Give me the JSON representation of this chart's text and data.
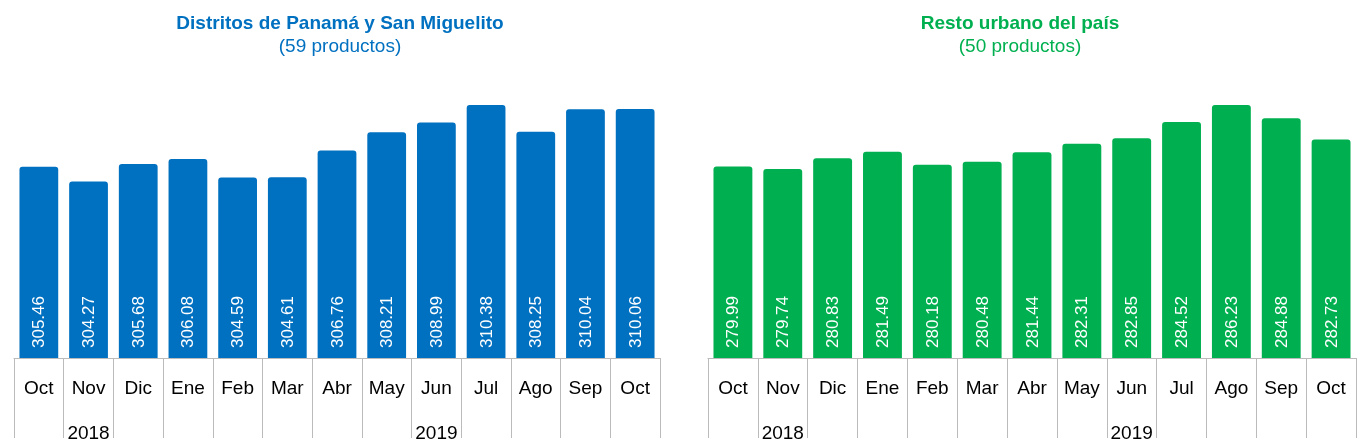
{
  "chart_data": [
    {
      "type": "bar",
      "title": "Distritos de Panamá y San Miguelito",
      "subtitle": "(59 productos)",
      "categories": [
        "Oct",
        "Nov",
        "Dic",
        "Ene",
        "Feb",
        "Mar",
        "Abr",
        "May",
        "Jun",
        "Jul",
        "Ago",
        "Sep",
        "Oct"
      ],
      "series": [
        {
          "color": "#0070c0",
          "values": [
            305.46,
            304.27,
            305.68,
            306.08,
            304.59,
            304.61,
            306.76,
            308.21,
            308.99,
            310.38,
            308.25,
            310.04,
            310.06
          ]
        }
      ],
      "ylim": [
        290.2,
        310.38
      ],
      "tick_labels": "x",
      "data_labels": true,
      "annotations": [
        "2018",
        "2019"
      ]
    },
    {
      "type": "bar",
      "title": "Resto urbano del país",
      "subtitle": "(50 productos)",
      "categories": [
        "Oct",
        "Nov",
        "Dic",
        "Ene",
        "Feb",
        "Mar",
        "Abr",
        "May",
        "Jun",
        "Jul",
        "Ago",
        "Sep",
        "Oct"
      ],
      "series": [
        {
          "color": "#00b050",
          "values": [
            279.99,
            279.74,
            280.83,
            281.49,
            280.18,
            280.48,
            281.44,
            282.31,
            282.85,
            284.52,
            286.23,
            284.88,
            282.73
          ]
        }
      ],
      "ylim": [
        260.6,
        286.23
      ],
      "tick_labels": "x",
      "data_labels": true,
      "annotations": [
        "2018",
        "2019"
      ]
    }
  ]
}
